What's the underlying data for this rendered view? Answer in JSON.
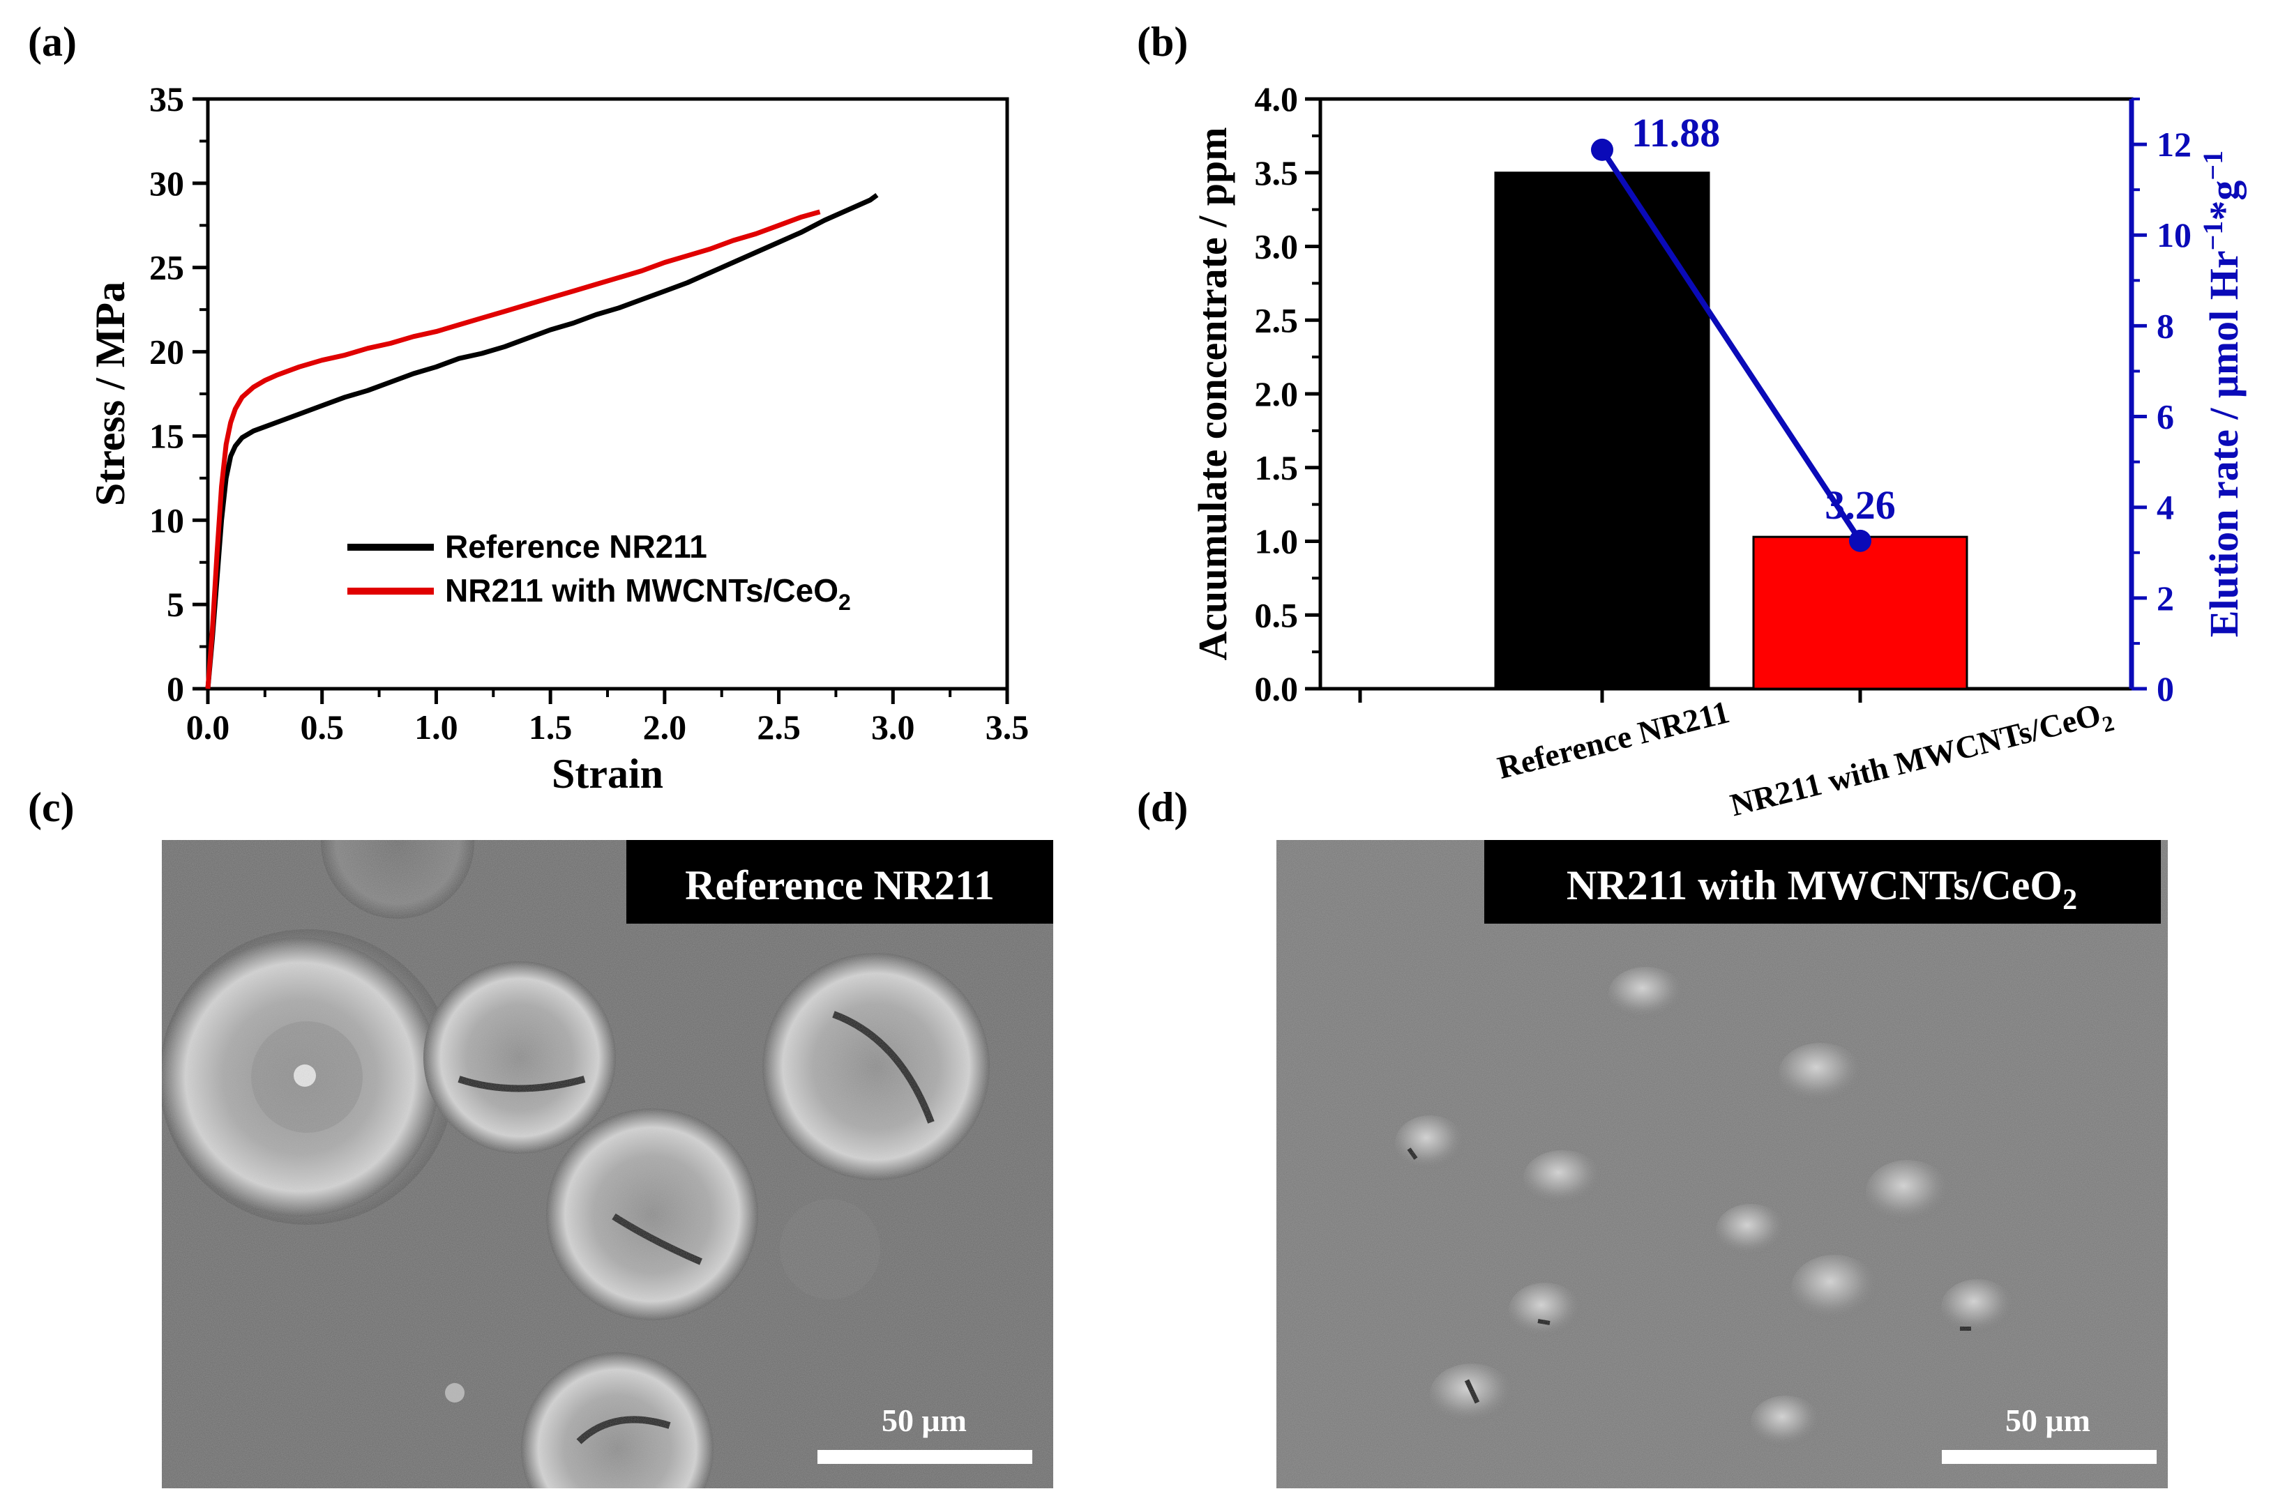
{
  "panel_labels": {
    "a": "(a)",
    "b": "(b)",
    "c": "(c)",
    "d": "(d)"
  },
  "chart_data": [
    {
      "type": "line",
      "xlabel": "Strain",
      "ylabel": "Stress / MPa",
      "xlim": [
        0.0,
        3.5
      ],
      "ylim": [
        0,
        35
      ],
      "x_ticks": [
        "0.0",
        "0.5",
        "1.0",
        "1.5",
        "2.0",
        "2.5",
        "3.0",
        "3.5"
      ],
      "y_ticks": [
        "0",
        "5",
        "10",
        "15",
        "20",
        "25",
        "30",
        "35"
      ],
      "legend": {
        "placement": "center",
        "entries": [
          "Reference NR211",
          "NR211 with MWCNTs/CeO"
        ],
        "subscript": "2"
      },
      "series": [
        {
          "name": "Reference NR211",
          "color": "#000000",
          "x": [
            0.0,
            0.02,
            0.04,
            0.06,
            0.08,
            0.1,
            0.12,
            0.15,
            0.2,
            0.3,
            0.4,
            0.5,
            0.6,
            0.7,
            0.8,
            0.9,
            1.0,
            1.1,
            1.2,
            1.3,
            1.4,
            1.5,
            1.6,
            1.7,
            1.8,
            1.9,
            2.0,
            2.1,
            2.2,
            2.3,
            2.4,
            2.5,
            2.6,
            2.7,
            2.8,
            2.9,
            2.93
          ],
          "y": [
            0,
            3,
            6.5,
            10,
            12.5,
            13.8,
            14.4,
            14.9,
            15.3,
            15.8,
            16.3,
            16.8,
            17.3,
            17.7,
            18.2,
            18.7,
            19.1,
            19.6,
            19.9,
            20.3,
            20.8,
            21.3,
            21.7,
            22.2,
            22.6,
            23.1,
            23.6,
            24.1,
            24.7,
            25.3,
            25.9,
            26.5,
            27.1,
            27.8,
            28.4,
            29.0,
            29.3
          ]
        },
        {
          "name": "NR211 with MWCNTs/CeO2",
          "color": "#e00000",
          "x": [
            0.0,
            0.02,
            0.04,
            0.06,
            0.08,
            0.1,
            0.12,
            0.15,
            0.2,
            0.25,
            0.3,
            0.4,
            0.5,
            0.6,
            0.7,
            0.8,
            0.9,
            1.0,
            1.1,
            1.2,
            1.3,
            1.4,
            1.5,
            1.6,
            1.7,
            1.8,
            1.9,
            2.0,
            2.1,
            2.2,
            2.3,
            2.4,
            2.5,
            2.6,
            2.68
          ],
          "y": [
            0,
            3.5,
            8,
            12,
            14.5,
            15.8,
            16.6,
            17.3,
            17.9,
            18.3,
            18.6,
            19.1,
            19.5,
            19.8,
            20.2,
            20.5,
            20.9,
            21.2,
            21.6,
            22.0,
            22.4,
            22.8,
            23.2,
            23.6,
            24.0,
            24.4,
            24.8,
            25.3,
            25.7,
            26.1,
            26.6,
            27.0,
            27.5,
            28.0,
            28.3
          ]
        }
      ]
    },
    {
      "type": "bar",
      "categories": [
        "Reference NR211",
        "NR211 with MWCNTs/CeO"
      ],
      "category_subscript": "2",
      "ylabel": "Acuumulate concentrate / ppm",
      "ylim": [
        0.0,
        4.0
      ],
      "y_ticks": [
        "0.0",
        "0.5",
        "1.0",
        "1.5",
        "2.0",
        "2.5",
        "3.0",
        "3.5",
        "4.0"
      ],
      "bars": [
        {
          "name": "Reference NR211",
          "value": 3.5,
          "color": "#000000"
        },
        {
          "name": "NR211 with MWCNTs/CeO2",
          "value": 1.03,
          "color": "#ff0000"
        }
      ],
      "y2label": "Elution rate / μmol Hr",
      "y2label_sup1": "−1",
      "y2label_mid": "*g",
      "y2label_sup2": "−1",
      "y2lim": [
        0,
        13
      ],
      "y2_ticks": [
        "0",
        "2",
        "4",
        "6",
        "8",
        "10",
        "12"
      ],
      "y2_color": "#0a0ab8",
      "line_series": {
        "name": "Elution rate",
        "color": "#0a0ab8",
        "values": [
          11.88,
          3.26
        ],
        "labels": [
          "11.88",
          "3.26"
        ]
      }
    }
  ],
  "images": [
    {
      "id": "c",
      "label": "Reference NR211",
      "scalebar": "50 μm"
    },
    {
      "id": "d",
      "label": "NR211 with MWCNTs/CeO",
      "label_subscript": "2",
      "scalebar": "50 μm"
    }
  ]
}
